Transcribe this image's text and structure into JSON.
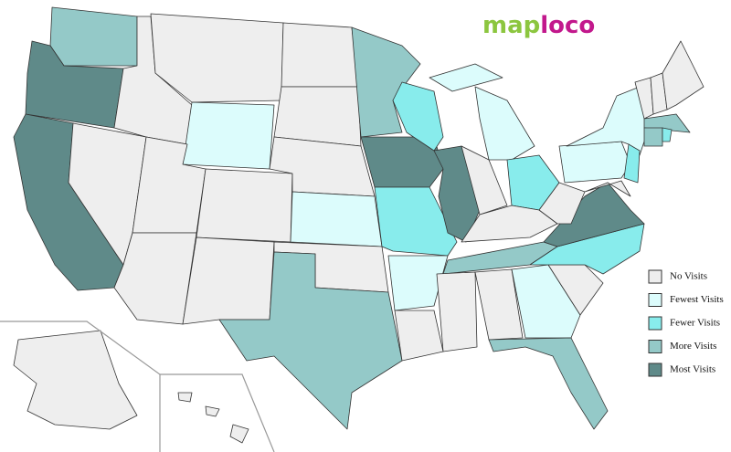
{
  "logo": {
    "first": "map",
    "second": "loco",
    "first_color": "#8cc63f",
    "second_color": "#c2188c"
  },
  "legend": {
    "items": [
      {
        "label": "No Visits",
        "color": "#eeeeee"
      },
      {
        "label": "Fewest Visits",
        "color": "#dcfcfc"
      },
      {
        "label": "Fewer Visits",
        "color": "#88ecec"
      },
      {
        "label": "More Visits",
        "color": "#94c9c8"
      },
      {
        "label": "Most Visits",
        "color": "#5f8a89"
      }
    ]
  }
}
